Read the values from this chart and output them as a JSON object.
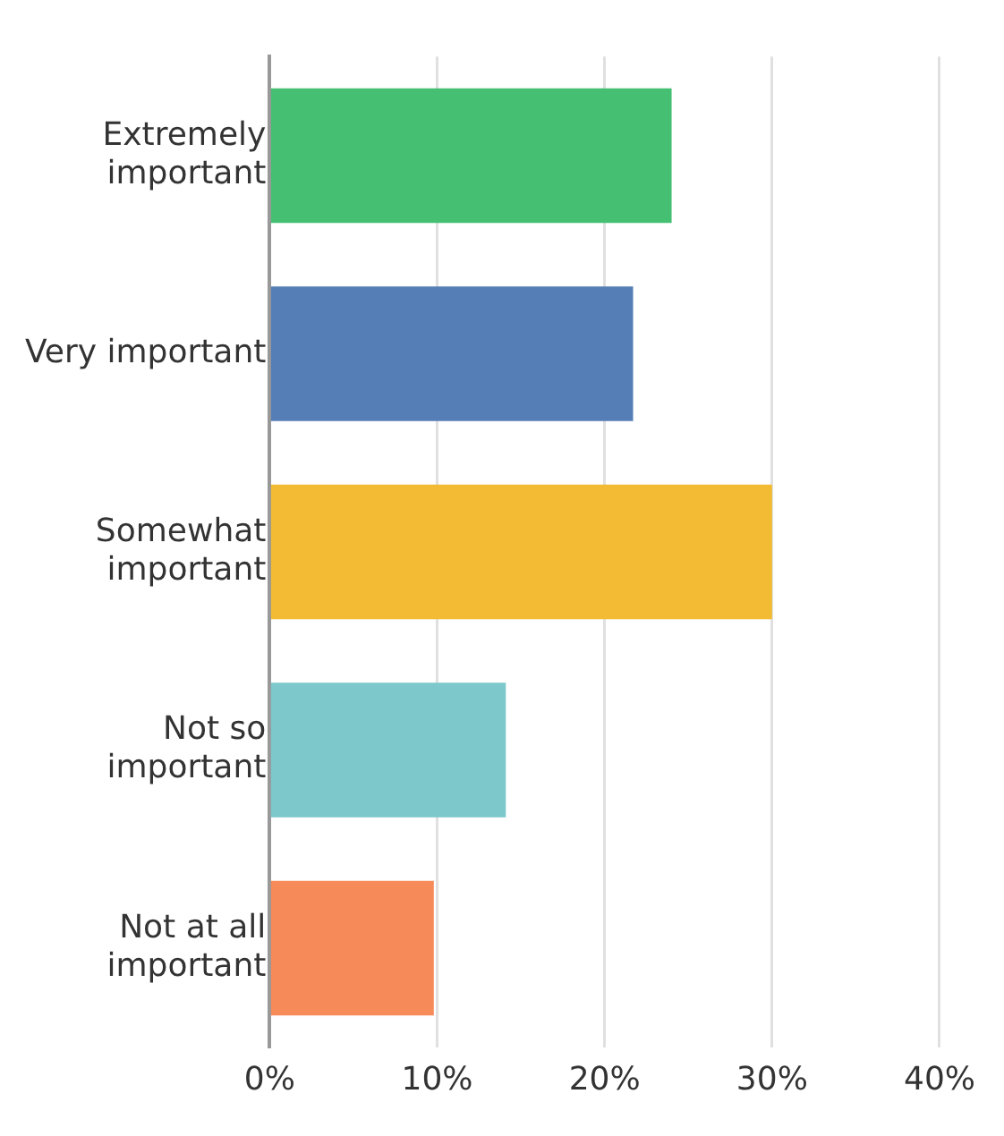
{
  "chart_data": {
    "type": "bar",
    "orientation": "horizontal",
    "categories": [
      "Extremely important",
      "Very important",
      "Somewhat important",
      "Not so important",
      "Not at all important"
    ],
    "values": [
      24,
      21.7,
      30,
      14.1,
      9.8
    ],
    "colors": [
      "#45bf71",
      "#557eb6",
      "#f2bb33",
      "#7dc8cb",
      "#f68a58"
    ],
    "xlim": [
      0,
      40
    ],
    "xticks": [
      {
        "value": 0,
        "label": "0%"
      },
      {
        "value": 10,
        "label": "10%"
      },
      {
        "value": 20,
        "label": "20%"
      },
      {
        "value": 30,
        "label": "30%"
      },
      {
        "value": 40,
        "label": "40%"
      }
    ],
    "grid": "x"
  }
}
